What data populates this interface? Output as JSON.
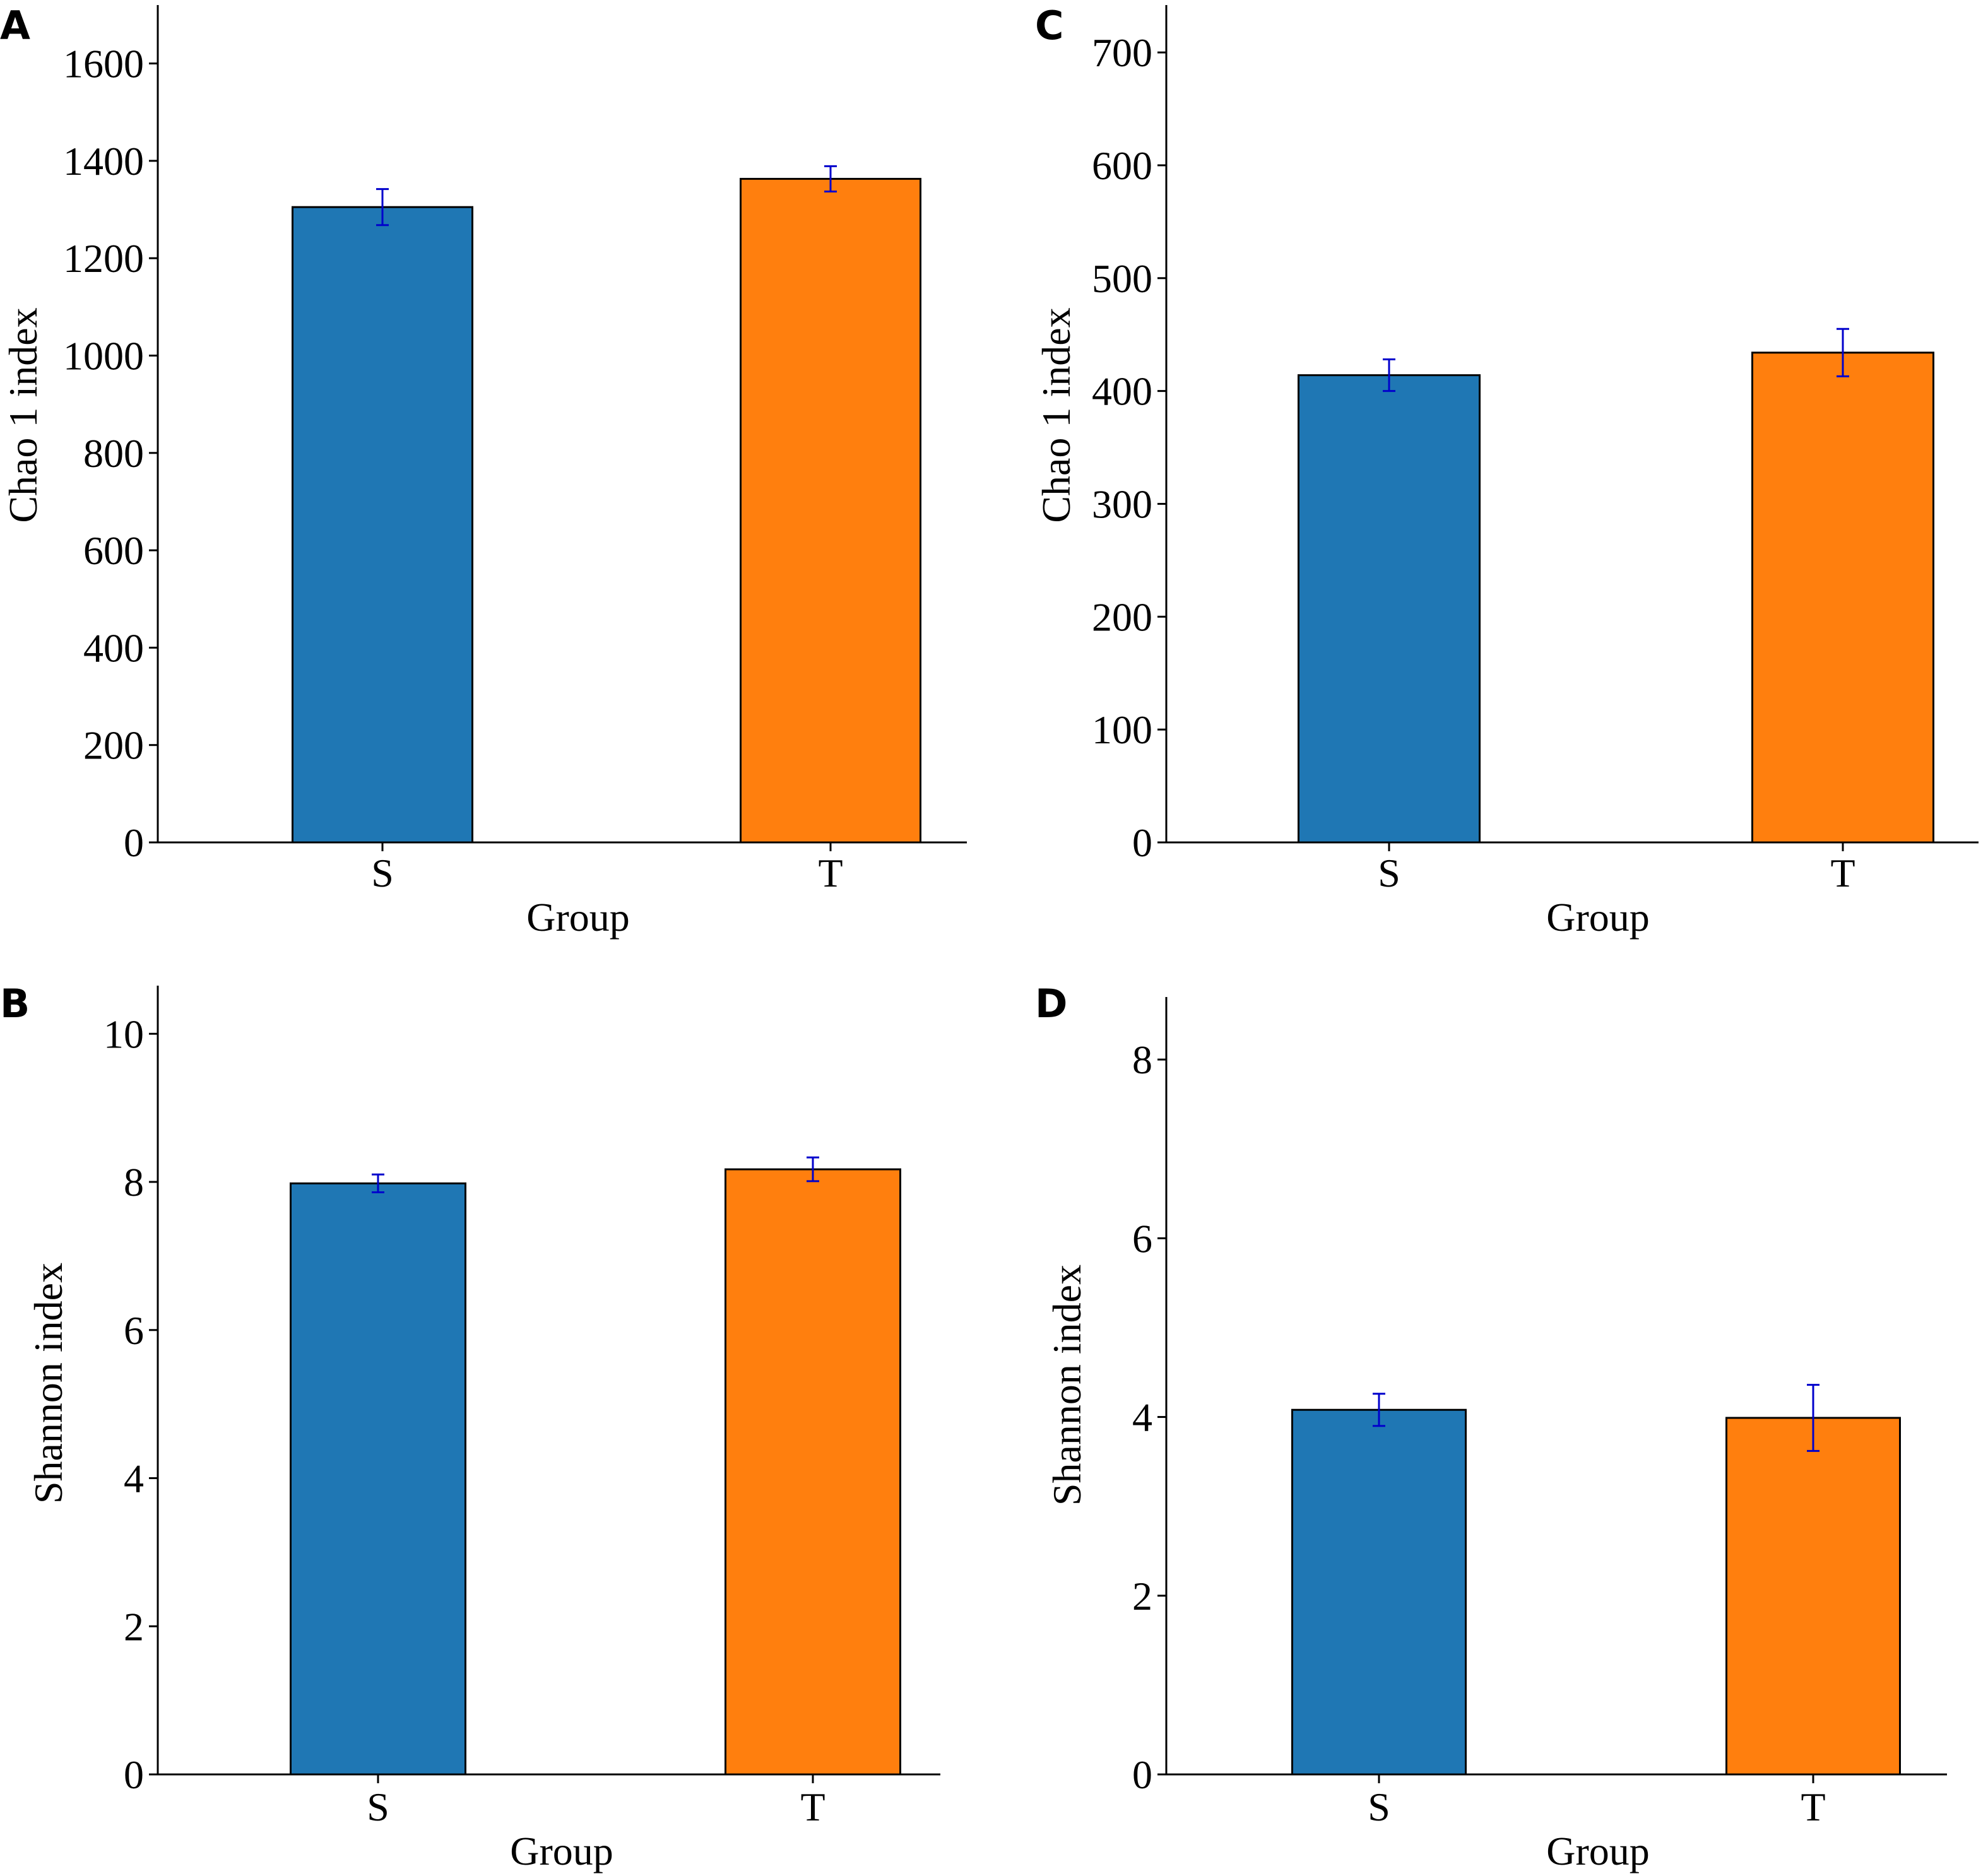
{
  "colors": {
    "bar_S": "#1f77b4",
    "bar_T": "#ff7f0e",
    "error_bar": "#0000cc",
    "axis": "#000000"
  },
  "chart_data": [
    {
      "panel": "A",
      "type": "bar",
      "categories": [
        "S",
        "T"
      ],
      "values": [
        1305,
        1363
      ],
      "errors": [
        37,
        26
      ],
      "xlabel": "Group",
      "ylabel": "Chao 1 index",
      "ylim": [
        0,
        1720
      ],
      "yticks": [
        0,
        200,
        400,
        600,
        800,
        1000,
        1200,
        1400,
        1600
      ]
    },
    {
      "panel": "B",
      "type": "bar",
      "categories": [
        "S",
        "T"
      ],
      "values": [
        7.98,
        8.17
      ],
      "errors": [
        0.12,
        0.16
      ],
      "xlabel": "Group",
      "ylabel": "Shannon index",
      "ylim": [
        0,
        10.65
      ],
      "yticks": [
        0,
        2,
        4,
        6,
        8,
        10
      ]
    },
    {
      "panel": "C",
      "type": "bar",
      "categories": [
        "S",
        "T"
      ],
      "values": [
        414,
        434
      ],
      "errors": [
        14,
        21
      ],
      "xlabel": "Group",
      "ylabel": "Chao 1 index",
      "ylim": [
        0,
        742
      ],
      "yticks": [
        0,
        100,
        200,
        300,
        400,
        500,
        600,
        700
      ]
    },
    {
      "panel": "D",
      "type": "bar",
      "categories": [
        "S",
        "T"
      ],
      "values": [
        4.08,
        3.99
      ],
      "errors": [
        0.18,
        0.37
      ],
      "xlabel": "Group",
      "ylabel": "Shannon index",
      "ylim": [
        0,
        8.7
      ],
      "yticks": [
        0,
        2,
        4,
        6,
        8
      ]
    }
  ]
}
